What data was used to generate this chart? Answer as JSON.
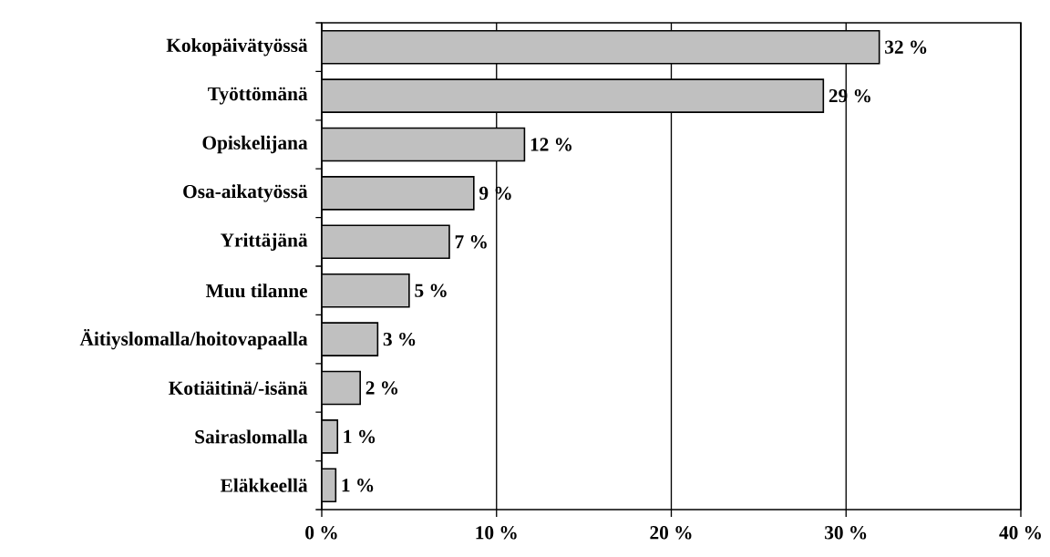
{
  "chart_data": {
    "type": "bar",
    "orientation": "horizontal",
    "categories": [
      "Kokopäivätyössä",
      "Työttömänä",
      "Opiskelijana",
      "Osa-aikatyössä",
      "Yrittäjänä",
      "Muu tilanne",
      "Äitiyslomalla/hoitovapaalla",
      "Kotiäitinä/-isänä",
      "Sairaslomalla",
      "Eläkkeellä"
    ],
    "values": [
      31.9,
      28.7,
      11.6,
      8.7,
      7.3,
      5.0,
      3.2,
      2.2,
      0.9,
      0.8
    ],
    "value_labels": [
      "32 %",
      "29 %",
      "12 %",
      "9 %",
      "7 %",
      "5 %",
      "3 %",
      "2 %",
      "1 %",
      "1 %"
    ],
    "color": "#c0c0c0",
    "xlim": [
      0,
      40
    ],
    "xticks": [
      {
        "value": 0,
        "label": "0 %"
      },
      {
        "value": 10,
        "label": "10 %"
      },
      {
        "value": 20,
        "label": "20 %"
      },
      {
        "value": 30,
        "label": "30 %"
      },
      {
        "value": 40,
        "label": "40 %"
      }
    ],
    "grid": "x"
  }
}
